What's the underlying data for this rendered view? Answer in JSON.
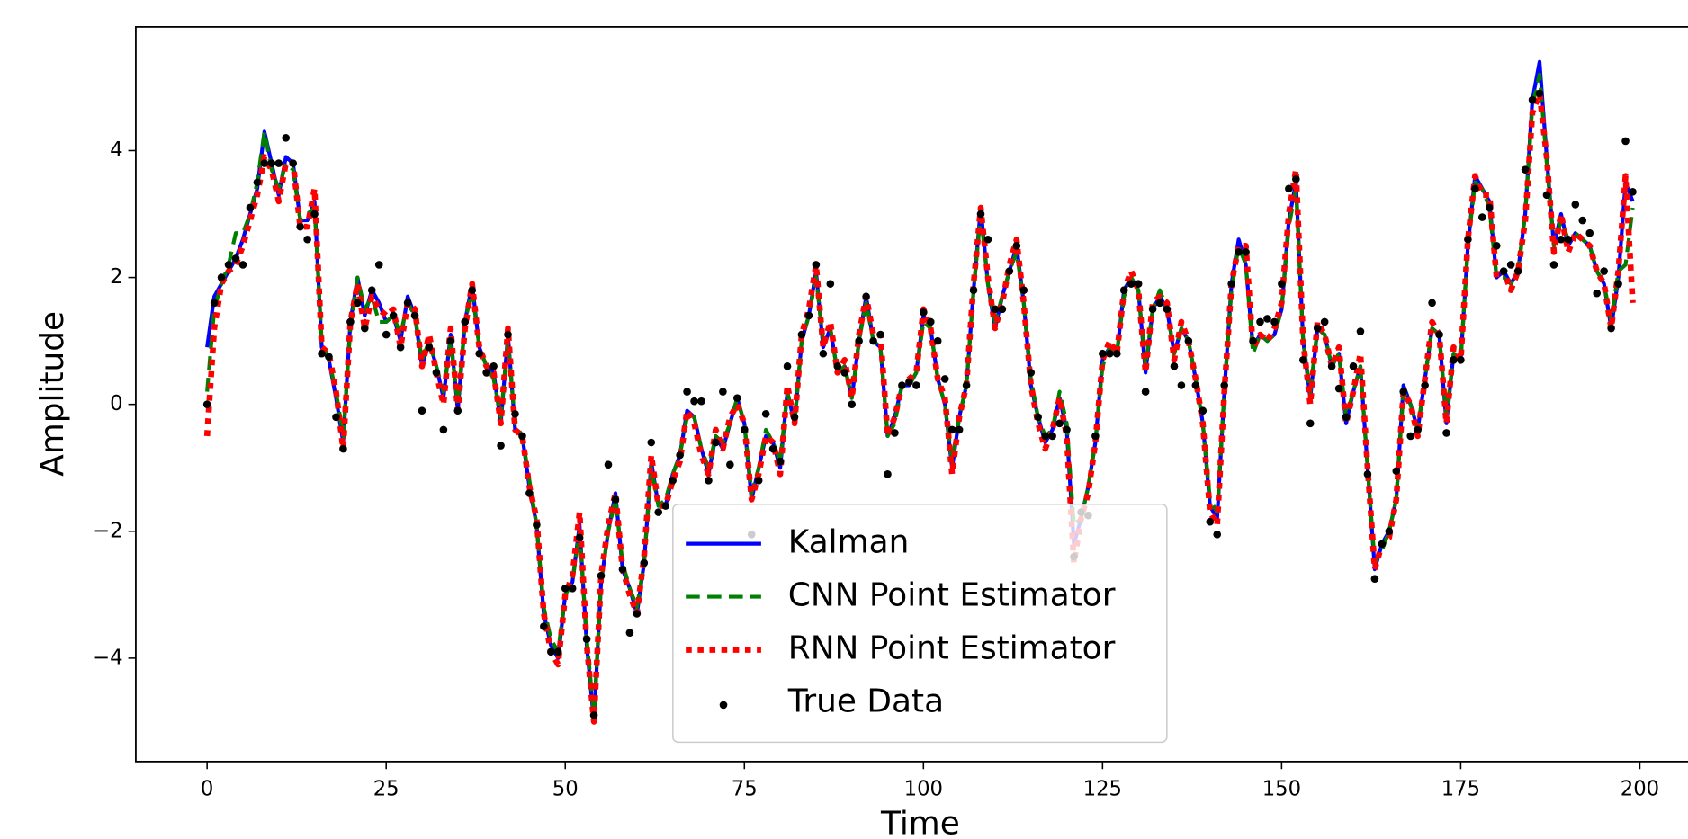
{
  "chart_data": {
    "type": "line",
    "xlabel": "Time",
    "ylabel": "Amplitude",
    "xlim": [
      -9.95,
      208.95
    ],
    "ylim": [
      -5.63,
      5.95
    ],
    "xticks": [
      0,
      25,
      50,
      75,
      100,
      125,
      150,
      175,
      200
    ],
    "yticks": [
      {
        "value": -4,
        "label": "−4"
      },
      {
        "value": -2,
        "label": "−2"
      },
      0,
      2,
      4
    ],
    "grid": false,
    "legend": "lower center",
    "x": [
      0,
      1,
      2,
      3,
      4,
      5,
      6,
      7,
      8,
      9,
      10,
      11,
      12,
      13,
      14,
      15,
      16,
      17,
      18,
      19,
      20,
      21,
      22,
      23,
      24,
      25,
      26,
      27,
      28,
      29,
      30,
      31,
      32,
      33,
      34,
      35,
      36,
      37,
      38,
      39,
      40,
      41,
      42,
      43,
      44,
      45,
      46,
      47,
      48,
      49,
      50,
      51,
      52,
      53,
      54,
      55,
      56,
      57,
      58,
      59,
      60,
      61,
      62,
      63,
      64,
      65,
      66,
      67,
      68,
      69,
      70,
      71,
      72,
      73,
      74,
      75,
      76,
      77,
      78,
      79,
      80,
      81,
      82,
      83,
      84,
      85,
      86,
      87,
      88,
      89,
      90,
      91,
      92,
      93,
      94,
      95,
      96,
      97,
      98,
      99,
      100,
      101,
      102,
      103,
      104,
      105,
      106,
      107,
      108,
      109,
      110,
      111,
      112,
      113,
      114,
      115,
      116,
      117,
      118,
      119,
      120,
      121,
      122,
      123,
      124,
      125,
      126,
      127,
      128,
      129,
      130,
      131,
      132,
      133,
      134,
      135,
      136,
      137,
      138,
      139,
      140,
      141,
      142,
      143,
      144,
      145,
      146,
      147,
      148,
      149,
      150,
      151,
      152,
      153,
      154,
      155,
      156,
      157,
      158,
      159,
      160,
      161,
      162,
      163,
      164,
      165,
      166,
      167,
      168,
      169,
      170,
      171,
      172,
      173,
      174,
      175,
      176,
      177,
      178,
      179,
      180,
      181,
      182,
      183,
      184,
      185,
      186,
      187,
      188,
      189,
      190,
      191,
      192,
      193,
      194,
      195,
      196,
      197,
      198,
      199
    ],
    "series": [
      {
        "name": "Kalman",
        "color": "#0000ff",
        "style": "solid",
        "values": [
          0.9,
          1.7,
          1.9,
          2.1,
          2.3,
          2.6,
          3.0,
          3.4,
          4.3,
          3.8,
          3.3,
          3.9,
          3.8,
          2.9,
          2.9,
          3.2,
          0.9,
          0.7,
          0.1,
          -0.6,
          1.3,
          2.0,
          1.4,
          1.8,
          1.6,
          1.3,
          1.4,
          1.0,
          1.7,
          1.4,
          0.6,
          1.0,
          0.6,
          0.1,
          1.1,
          -0.1,
          1.3,
          1.9,
          0.9,
          0.6,
          0.5,
          -0.3,
          1.1,
          -0.4,
          -0.5,
          -1.3,
          -1.9,
          -3.3,
          -3.8,
          -4.0,
          -3.0,
          -2.8,
          -1.9,
          -3.8,
          -5.0,
          -2.8,
          -2.0,
          -1.4,
          -2.6,
          -2.9,
          -3.3,
          -2.5,
          -0.9,
          -1.6,
          -1.6,
          -1.1,
          -0.8,
          -0.1,
          -0.2,
          -0.7,
          -1.1,
          -0.5,
          -0.7,
          -0.3,
          0.1,
          -0.3,
          -1.5,
          -1.0,
          -0.5,
          -0.6,
          -1.0,
          0.2,
          -0.3,
          1.0,
          1.4,
          2.1,
          0.9,
          1.2,
          0.5,
          0.6,
          0.1,
          1.0,
          1.7,
          1.0,
          0.9,
          -0.5,
          -0.2,
          0.3,
          0.3,
          0.5,
          1.4,
          1.2,
          0.4,
          0.0,
          -1.0,
          -0.2,
          0.3,
          1.8,
          3.1,
          1.9,
          1.2,
          1.7,
          2.1,
          2.5,
          1.6,
          0.3,
          -0.2,
          -0.6,
          -0.4,
          0.1,
          -0.4,
          -2.2,
          -1.8,
          -1.3,
          -0.6,
          0.7,
          0.9,
          0.8,
          1.8,
          2.0,
          1.8,
          0.5,
          1.5,
          1.7,
          1.5,
          0.8,
          1.2,
          1.0,
          0.4,
          -0.3,
          -1.6,
          -1.8,
          0.2,
          1.9,
          2.6,
          2.2,
          0.9,
          1.1,
          1.0,
          1.1,
          1.5,
          2.9,
          3.5,
          1.0,
          0.1,
          1.2,
          1.1,
          0.6,
          0.8,
          -0.3,
          0.2,
          0.6,
          -1.0,
          -2.6,
          -2.2,
          -2.0,
          -1.5,
          0.3,
          0.0,
          -0.4,
          0.4,
          1.2,
          1.1,
          -0.3,
          0.8,
          0.7,
          2.5,
          3.6,
          3.4,
          3.2,
          2.0,
          2.1,
          1.9,
          2.1,
          3.0,
          4.8,
          5.4,
          3.9,
          2.5,
          3.0,
          2.5,
          2.7,
          2.6,
          2.5,
          2.1,
          1.9,
          1.2,
          2.0,
          3.5,
          3.2
        ]
      },
      {
        "name": "CNN Point Estimator",
        "color": "#008000",
        "style": "dashed",
        "values": [
          0.2,
          1.5,
          1.9,
          2.2,
          2.7,
          2.7,
          3.0,
          3.5,
          4.3,
          3.7,
          3.4,
          3.8,
          3.7,
          2.9,
          3.0,
          3.1,
          1.0,
          0.7,
          0.2,
          -0.5,
          1.2,
          2.0,
          1.5,
          1.7,
          1.3,
          1.3,
          1.4,
          1.1,
          1.6,
          1.4,
          0.7,
          1.0,
          0.6,
          0.2,
          1.0,
          0.0,
          1.3,
          1.8,
          0.9,
          0.6,
          0.4,
          -0.2,
          1.0,
          -0.3,
          -0.5,
          -1.2,
          -1.9,
          -3.2,
          -3.7,
          -3.9,
          -3.0,
          -2.8,
          -2.0,
          -3.7,
          -4.9,
          -2.8,
          -2.0,
          -1.5,
          -2.5,
          -2.9,
          -3.2,
          -2.5,
          -1.0,
          -1.6,
          -1.5,
          -1.1,
          -0.8,
          -0.2,
          -0.2,
          -0.7,
          -1.0,
          -0.5,
          -0.6,
          -0.3,
          0.1,
          -0.3,
          -1.4,
          -1.0,
          -0.4,
          -0.6,
          -0.9,
          0.2,
          -0.3,
          1.0,
          1.4,
          2.0,
          1.0,
          1.2,
          0.5,
          0.6,
          0.1,
          1.0,
          1.6,
          1.0,
          0.9,
          -0.5,
          -0.3,
          0.3,
          0.3,
          0.5,
          1.3,
          1.2,
          0.4,
          0.0,
          -0.9,
          -0.2,
          0.3,
          1.8,
          3.0,
          1.9,
          1.3,
          1.7,
          2.1,
          2.4,
          1.6,
          0.4,
          -0.2,
          -0.5,
          -0.4,
          0.2,
          -0.3,
          -1.9,
          -1.8,
          -1.3,
          -0.6,
          0.6,
          0.9,
          0.8,
          1.7,
          2.0,
          1.8,
          0.6,
          1.5,
          1.8,
          1.5,
          0.8,
          1.2,
          1.0,
          0.4,
          -0.3,
          -1.5,
          -1.7,
          0.2,
          1.8,
          2.5,
          2.2,
          0.8,
          1.1,
          1.0,
          1.1,
          1.5,
          2.8,
          3.4,
          1.0,
          0.2,
          1.2,
          1.1,
          0.6,
          0.8,
          -0.2,
          0.2,
          0.6,
          -1.0,
          -2.5,
          -2.3,
          -2.0,
          -1.5,
          0.2,
          0.0,
          -0.4,
          0.4,
          1.2,
          1.1,
          -0.2,
          0.8,
          0.7,
          2.5,
          3.5,
          3.4,
          3.1,
          2.0,
          2.0,
          1.9,
          2.1,
          3.0,
          4.7,
          5.2,
          3.8,
          2.5,
          2.9,
          2.6,
          2.7,
          2.6,
          2.5,
          2.1,
          1.9,
          1.3,
          2.1,
          2.2,
          3.1
        ]
      },
      {
        "name": "RNN Point Estimator",
        "color": "#ff0000",
        "style": "dotted",
        "values": [
          -0.5,
          1.2,
          1.9,
          2.1,
          2.2,
          2.5,
          2.9,
          3.3,
          3.9,
          3.7,
          3.2,
          3.8,
          3.8,
          2.8,
          2.8,
          3.4,
          0.9,
          0.8,
          0.2,
          -0.7,
          1.3,
          1.9,
          1.2,
          1.7,
          1.5,
          1.4,
          1.5,
          0.9,
          1.6,
          1.5,
          0.6,
          1.1,
          0.5,
          0.0,
          1.2,
          -0.1,
          1.2,
          1.9,
          0.9,
          0.6,
          0.5,
          -0.3,
          1.2,
          -0.4,
          -0.5,
          -1.3,
          -1.8,
          -3.3,
          -3.9,
          -4.1,
          -3.0,
          -2.7,
          -1.7,
          -3.8,
          -5.0,
          -2.7,
          -1.9,
          -1.4,
          -2.6,
          -3.0,
          -3.3,
          -2.4,
          -0.8,
          -1.6,
          -1.6,
          -1.2,
          -0.9,
          -0.1,
          -0.3,
          -0.8,
          -1.1,
          -0.4,
          -0.7,
          -0.2,
          0.0,
          -0.3,
          -1.5,
          -1.1,
          -0.5,
          -0.6,
          -1.1,
          0.3,
          -0.3,
          1.1,
          1.5,
          2.2,
          0.9,
          1.3,
          0.5,
          0.7,
          0.1,
          1.1,
          1.7,
          1.1,
          1.1,
          -0.5,
          -0.2,
          0.3,
          0.4,
          0.5,
          1.5,
          1.2,
          0.4,
          0.1,
          -1.1,
          -0.2,
          0.3,
          1.9,
          3.1,
          2.0,
          1.2,
          1.6,
          2.2,
          2.6,
          1.6,
          0.3,
          -0.3,
          -0.7,
          -0.4,
          0.1,
          -0.5,
          -2.5,
          -1.8,
          -1.4,
          -0.6,
          0.7,
          1.0,
          0.8,
          1.8,
          2.1,
          1.8,
          0.5,
          1.6,
          1.7,
          1.6,
          0.7,
          1.3,
          1.0,
          0.4,
          -0.3,
          -1.7,
          -1.9,
          0.2,
          1.9,
          2.5,
          2.5,
          0.9,
          1.1,
          1.0,
          1.2,
          1.6,
          3.0,
          3.7,
          1.0,
          0.0,
          1.3,
          1.1,
          0.6,
          0.9,
          -0.3,
          0.2,
          0.8,
          -1.0,
          -2.6,
          -2.2,
          -2.1,
          -1.5,
          0.2,
          0.0,
          -0.5,
          0.4,
          1.3,
          1.1,
          -0.3,
          0.9,
          0.7,
          2.6,
          3.6,
          3.3,
          3.3,
          2.0,
          2.1,
          1.8,
          2.1,
          2.9,
          4.6,
          4.9,
          3.9,
          2.4,
          3.0,
          2.4,
          2.7,
          2.6,
          2.5,
          2.1,
          1.9,
          1.2,
          2.1,
          3.6,
          1.6
        ]
      },
      {
        "name": "True Data",
        "color": "#000000",
        "style": "points",
        "values": [
          0.0,
          1.6,
          2.0,
          2.2,
          2.3,
          2.2,
          3.1,
          3.5,
          3.8,
          3.8,
          3.8,
          4.2,
          3.8,
          2.8,
          2.6,
          3.0,
          0.8,
          0.75,
          -0.2,
          -0.7,
          1.3,
          1.6,
          1.2,
          1.8,
          2.2,
          1.1,
          1.4,
          0.9,
          1.6,
          1.4,
          -0.1,
          0.9,
          0.5,
          -0.4,
          1.0,
          -0.1,
          1.3,
          1.8,
          0.8,
          0.5,
          0.6,
          -0.65,
          1.1,
          -0.15,
          -0.5,
          -1.4,
          -1.9,
          -3.5,
          -3.9,
          -3.9,
          -2.9,
          -2.9,
          -2.1,
          -3.7,
          -4.9,
          -2.7,
          -0.95,
          -1.5,
          -2.6,
          -3.6,
          -3.3,
          -2.5,
          -0.6,
          -1.7,
          -1.6,
          -1.2,
          -0.8,
          0.2,
          0.05,
          0.05,
          -1.2,
          -0.6,
          0.2,
          -0.95,
          0.1,
          -0.4,
          -2.05,
          -1.2,
          -0.15,
          -0.7,
          -0.9,
          0.6,
          -0.2,
          1.1,
          1.4,
          2.2,
          0.8,
          1.9,
          0.6,
          0.5,
          0.0,
          1.0,
          1.7,
          1.0,
          1.1,
          -1.1,
          -0.45,
          0.3,
          0.35,
          0.3,
          1.45,
          1.3,
          1.0,
          0.4,
          -0.4,
          -0.4,
          0.3,
          1.8,
          3.0,
          2.6,
          1.5,
          1.5,
          2.1,
          2.5,
          1.8,
          0.5,
          -0.2,
          -0.5,
          -0.5,
          -0.3,
          -0.4,
          -2.4,
          -1.7,
          -1.75,
          -0.5,
          0.8,
          0.8,
          0.8,
          1.8,
          1.9,
          1.9,
          0.2,
          1.5,
          1.6,
          1.5,
          0.6,
          0.3,
          1.0,
          0.3,
          -0.1,
          -1.85,
          -2.05,
          0.3,
          1.9,
          2.4,
          2.4,
          1.0,
          1.3,
          1.35,
          1.3,
          1.9,
          3.4,
          3.55,
          0.7,
          -0.3,
          1.2,
          1.3,
          0.6,
          0.25,
          -0.2,
          0.6,
          1.15,
          -1.1,
          -2.75,
          -2.2,
          -2.0,
          -1.05,
          0.2,
          -0.5,
          -0.4,
          0.3,
          1.6,
          1.1,
          -0.45,
          0.7,
          0.7,
          2.6,
          3.4,
          2.95,
          3.1,
          2.5,
          2.1,
          2.2,
          2.1,
          3.7,
          4.8,
          4.9,
          3.3,
          2.2,
          2.6,
          2.6,
          3.15,
          2.9,
          2.7,
          1.75,
          2.1,
          1.2,
          1.9,
          4.15,
          3.35
        ]
      }
    ]
  }
}
